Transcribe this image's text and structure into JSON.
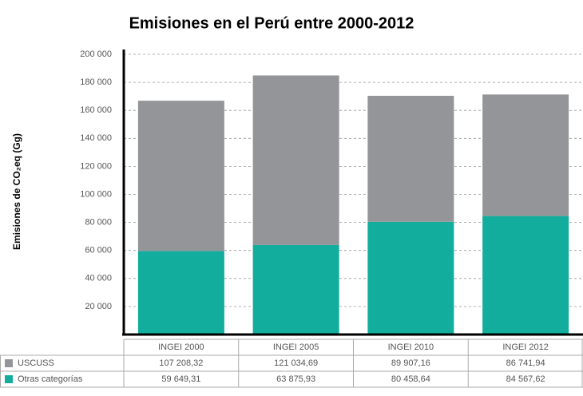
{
  "chart_data": {
    "type": "stacked_bar",
    "title": "Emisiones en el Perú entre 2000-2012",
    "y_label": "Emisiones de CO₂eq (Gg)",
    "categories": [
      "INGEI 2000",
      "INGEI 2005",
      "INGEI 2010",
      "INGEI 2012"
    ],
    "series": [
      {
        "name": "USCUSS",
        "color": "#939598",
        "values": [
          107208.32,
          121034.69,
          89907.16,
          86741.94
        ],
        "value_labels": [
          "107 208,32",
          "121 034,69",
          "89 907,16",
          "86 741,94"
        ]
      },
      {
        "name": "Otras categorías",
        "color": "#12ad9c",
        "values": [
          59649.31,
          63875.93,
          80458.64,
          84567.62
        ],
        "value_labels": [
          "59 649,31",
          "63 875,93",
          "80 458,64",
          "84 567,62"
        ]
      }
    ],
    "ylim": [
      0,
      200000
    ],
    "yticks": [
      {
        "value": 20000,
        "label": "20 000"
      },
      {
        "value": 40000,
        "label": "40 000"
      },
      {
        "value": 60000,
        "label": "60 000"
      },
      {
        "value": 80000,
        "label": "80 000"
      },
      {
        "value": 100000,
        "label": "100 000"
      },
      {
        "value": 120000,
        "label": "120 000"
      },
      {
        "value": 140000,
        "label": "140 000"
      },
      {
        "value": 160000,
        "label": "160 000"
      },
      {
        "value": 180000,
        "label": "180 000"
      },
      {
        "value": 200000,
        "label": "200 000"
      }
    ],
    "grid": true
  }
}
